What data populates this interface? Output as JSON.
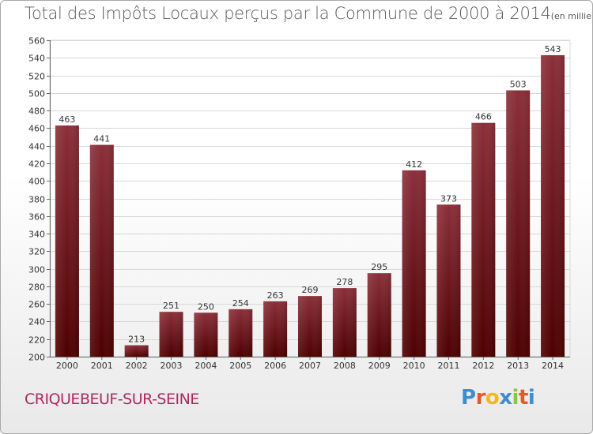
{
  "chart_data": {
    "type": "bar",
    "title": "Total des Impôts Locaux perçus par la Commune de 2000 à 2014",
    "unit_label": "(en milliers d'€)",
    "categories": [
      "2000",
      "2001",
      "2002",
      "2003",
      "2004",
      "2005",
      "2006",
      "2007",
      "2008",
      "2009",
      "2010",
      "2011",
      "2012",
      "2013",
      "2014"
    ],
    "values": [
      463,
      441,
      213,
      251,
      250,
      254,
      263,
      269,
      278,
      295,
      412,
      373,
      466,
      503,
      543
    ],
    "value_labels": [
      "463",
      "441",
      "213",
      "251",
      "250",
      "254",
      "263",
      "269",
      "278",
      "295",
      "412",
      "373",
      "466",
      "503",
      "543"
    ],
    "ylim": [
      200,
      560
    ],
    "yticks": [
      200,
      220,
      240,
      260,
      280,
      300,
      320,
      340,
      360,
      380,
      400,
      420,
      440,
      460,
      480,
      500,
      520,
      540,
      560
    ],
    "ytick_labels": [
      "200",
      "220",
      "240",
      "260",
      "280",
      "300",
      "320",
      "340",
      "360",
      "380",
      "400",
      "420",
      "440",
      "460",
      "480",
      "500",
      "520",
      "540",
      "560"
    ],
    "xlabel": "",
    "ylabel": "",
    "grid": true,
    "bar_color_top": "#8b2f3a",
    "bar_color_bottom": "#4d0000"
  },
  "commune": "CRIQUEBEUF-SUR-SEINE",
  "logo": {
    "letters": [
      "P",
      "r",
      "o",
      "x",
      "i",
      "t",
      "i"
    ],
    "colors": [
      "#3d8ecf",
      "#e8562a",
      "#f2b91c",
      "#3d8ecf",
      "#8cc63f",
      "#e8562a",
      "#3d8ecf"
    ]
  }
}
